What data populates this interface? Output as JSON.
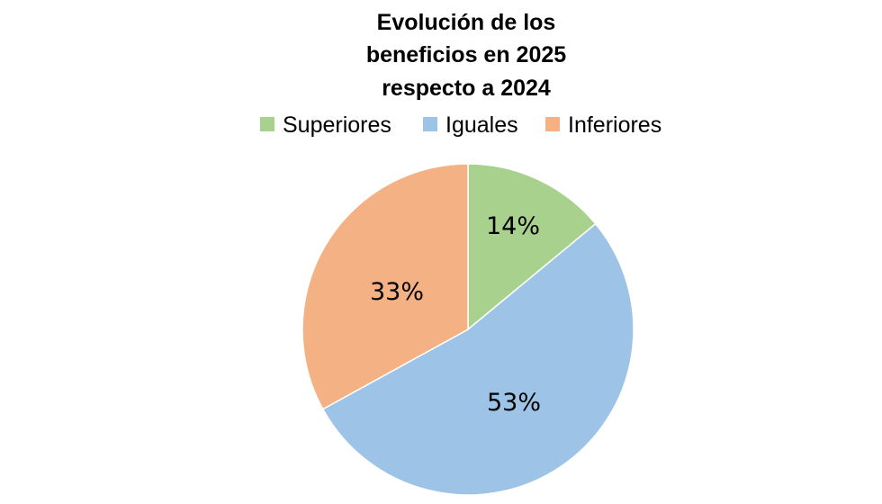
{
  "chart_data": {
    "type": "pie",
    "title": [
      "Evolución de los",
      "beneficios en 2025",
      "respecto a 2024"
    ],
    "legend_position": "top",
    "slices": [
      {
        "name": "Superiores",
        "value": 14,
        "label": "14%",
        "color": "#a9d18e"
      },
      {
        "name": "Iguales",
        "value": 53,
        "label": "53%",
        "color": "#9dc3e6"
      },
      {
        "name": "Inferiores",
        "value": 33,
        "label": "33%",
        "color": "#f4b183"
      }
    ]
  }
}
